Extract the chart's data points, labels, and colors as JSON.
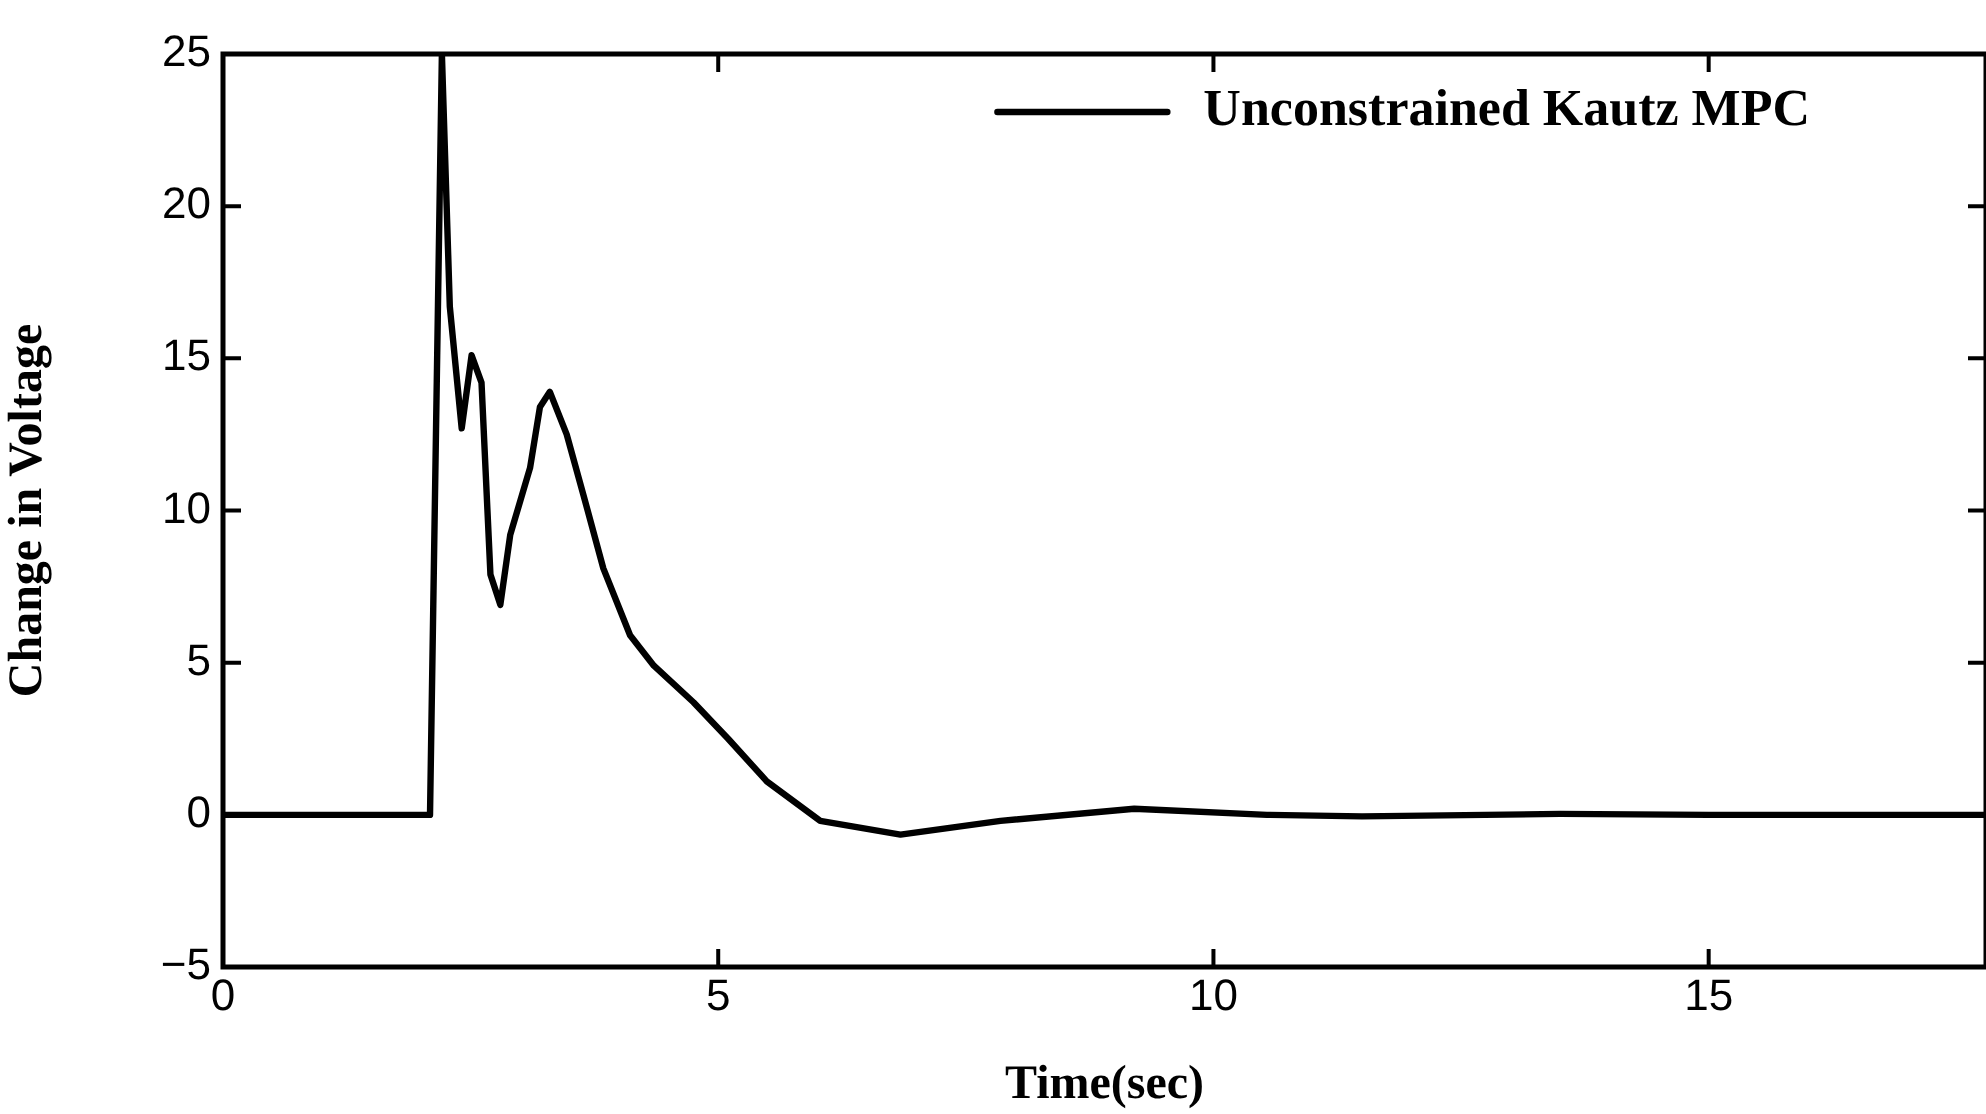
{
  "chart_data": {
    "type": "line",
    "xlabel": "Time(sec)",
    "ylabel": "Change in Voltage",
    "xlim": [
      0,
      17.8
    ],
    "ylim": [
      -5,
      25
    ],
    "xticks": [
      0,
      5,
      10,
      15
    ],
    "yticks": [
      -5,
      0,
      5,
      10,
      15,
      20,
      25
    ],
    "grid": false,
    "legend": "top right",
    "marker": "none",
    "line_style": "solid",
    "series": [
      {
        "name": "Unconstrained Kautz MPC",
        "color": "#000000",
        "x": [
          0,
          2.09,
          2.21,
          2.29,
          2.41,
          2.51,
          2.61,
          2.7,
          2.8,
          2.9,
          3.1,
          3.2,
          3.3,
          3.47,
          3.64,
          3.84,
          4.11,
          4.35,
          4.75,
          5.1,
          5.49,
          6.03,
          6.84,
          7.85,
          9.2,
          10.54,
          11.5,
          13.5,
          15,
          17.8
        ],
        "values": [
          0,
          0,
          25,
          16.7,
          12.7,
          15.1,
          14.2,
          7.9,
          6.9,
          9.2,
          11.4,
          13.4,
          13.9,
          12.5,
          10.5,
          8.1,
          5.9,
          4.9,
          3.7,
          2.5,
          1.1,
          -0.2,
          -0.65,
          -0.2,
          0.2,
          0,
          -0.05,
          0.03,
          0,
          0
        ]
      }
    ]
  }
}
